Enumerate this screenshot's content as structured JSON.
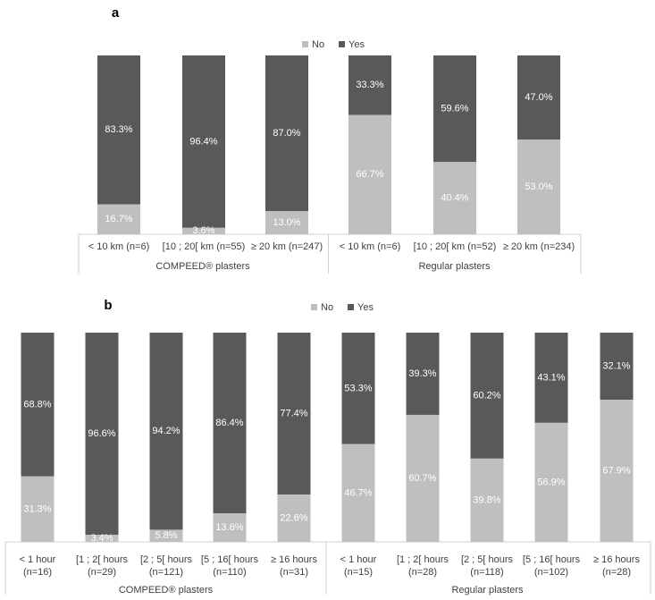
{
  "colors": {
    "no": "#bfbfbf",
    "yes": "#595959"
  },
  "chart_data": [
    {
      "panel": "a",
      "type": "bar",
      "stacked": true,
      "normalized": true,
      "legend_position": "top-center",
      "grid": false,
      "series": [
        {
          "name": "No",
          "values": [
            16.7,
            3.6,
            13.0,
            66.7,
            40.4,
            53.0
          ]
        },
        {
          "name": "Yes",
          "values": [
            83.3,
            96.4,
            87.0,
            33.3,
            59.6,
            47.0
          ]
        }
      ],
      "categories": [
        [
          "< 10 km (n=6)"
        ],
        [
          "[10 ; 20[ km (n=55)"
        ],
        [
          "≥ 20 km (n=247)"
        ],
        [
          "< 10 km (n=6)"
        ],
        [
          "[10 ; 20[ km (n=52)"
        ],
        [
          "≥ 20 km (n=234)"
        ]
      ],
      "groups": [
        {
          "label": "COMPEED® plasters",
          "count": 3
        },
        {
          "label": "Regular plasters",
          "count": 3
        }
      ],
      "value_labels": {
        "No": [
          "16.7%",
          "3.6%",
          "13.0%",
          "66.7%",
          "40.4%",
          "53.0%"
        ],
        "Yes": [
          "83.3%",
          "96.4%",
          "87.0%",
          "33.3%",
          "59.6%",
          "47.0%"
        ]
      },
      "ylim": [
        0,
        100
      ]
    },
    {
      "panel": "b",
      "type": "bar",
      "stacked": true,
      "normalized": true,
      "legend_position": "top-center",
      "grid": false,
      "series": [
        {
          "name": "No",
          "values": [
            31.3,
            3.4,
            5.8,
            13.6,
            22.6,
            46.7,
            60.7,
            39.8,
            56.9,
            67.9
          ]
        },
        {
          "name": "Yes",
          "values": [
            68.8,
            96.6,
            94.2,
            86.4,
            77.4,
            53.3,
            39.3,
            60.2,
            43.1,
            32.1
          ]
        }
      ],
      "categories": [
        [
          "< 1 hour",
          "(n=16)"
        ],
        [
          "[1 ; 2[ hours",
          "(n=29)"
        ],
        [
          "[2 ; 5[ hours",
          "(n=121)"
        ],
        [
          "[5 ; 16[ hours",
          "(n=110)"
        ],
        [
          "≥ 16 hours",
          "(n=31)"
        ],
        [
          "< 1 hour",
          "(n=15)"
        ],
        [
          "[1 ; 2[ hours",
          "(n=28)"
        ],
        [
          "[2 ; 5[ hours",
          "(n=118)"
        ],
        [
          "[5 ; 16[ hours",
          "(n=102)"
        ],
        [
          "≥ 16 hours",
          "(n=28)"
        ]
      ],
      "groups": [
        {
          "label": "COMPEED® plasters",
          "count": 5
        },
        {
          "label": "Regular plasters",
          "count": 5
        }
      ],
      "value_labels": {
        "No": [
          "31.3%",
          "3.4%",
          "5.8%",
          "13.6%",
          "22.6%",
          "46.7%",
          "60.7%",
          "39.8%",
          "56.9%",
          "67.9%"
        ],
        "Yes": [
          "68.8%",
          "96.6%",
          "94.2%",
          "86.4%",
          "77.4%",
          "53.3%",
          "39.3%",
          "60.2%",
          "43.1%",
          "32.1%"
        ]
      },
      "ylim": [
        0,
        100
      ]
    }
  ]
}
